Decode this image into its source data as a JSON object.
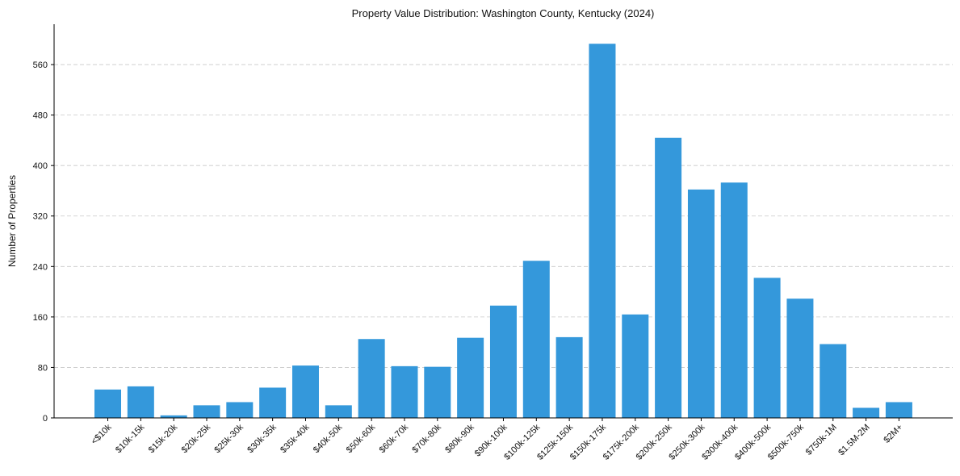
{
  "chart_data": {
    "type": "bar",
    "title": "Property Value Distribution: Washington County, Kentucky (2024)",
    "xlabel": "",
    "ylabel": "Number of Properties",
    "ylim": [
      0,
      624
    ],
    "yticks": [
      0,
      80,
      160,
      240,
      320,
      400,
      480,
      560
    ],
    "grid": "y-dashed",
    "bar_color": "#3498db",
    "categories": [
      "<$10k",
      "$10k-15k",
      "$15k-20k",
      "$20k-25k",
      "$25k-30k",
      "$30k-35k",
      "$35k-40k",
      "$40k-50k",
      "$50k-60k",
      "$60k-70k",
      "$70k-80k",
      "$80k-90k",
      "$90k-100k",
      "$100k-125k",
      "$125k-150k",
      "$150k-175k",
      "$175k-200k",
      "$200k-250k",
      "$250k-300k",
      "$300k-400k",
      "$400k-500k",
      "$500k-750k",
      "$750k-1M",
      "$1.5M-2M",
      "$2M+"
    ],
    "values": [
      45,
      50,
      4,
      20,
      25,
      48,
      83,
      20,
      125,
      82,
      81,
      127,
      178,
      249,
      128,
      593,
      164,
      444,
      362,
      373,
      222,
      189,
      117,
      16,
      25
    ]
  }
}
